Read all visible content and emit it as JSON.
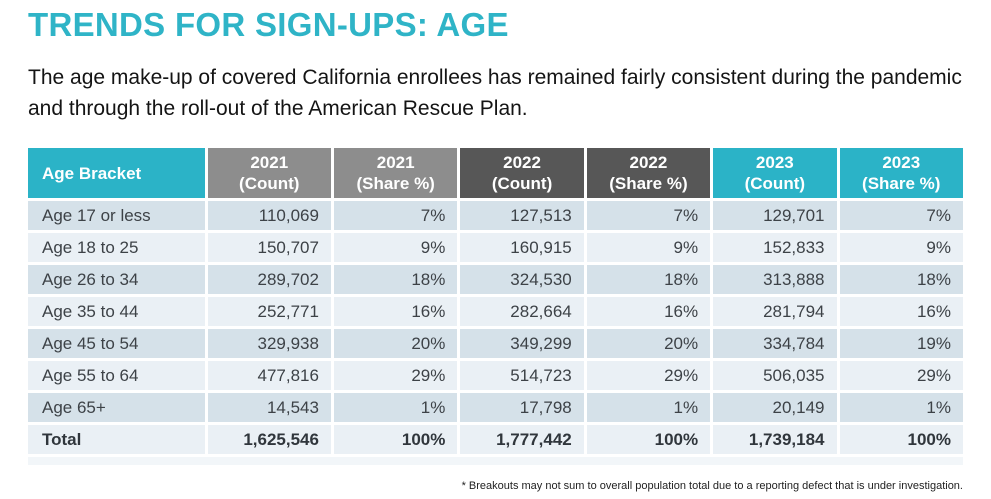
{
  "title": "TRENDS FOR SIGN-UPS: AGE",
  "subtitle": "The age make-up of covered California enrollees has remained fairly consistent during the pandemic and through the roll-out of the American Rescue Plan.",
  "footnote": "* Breakouts may not sum to overall population total due to a reporting defect that is under investigation.",
  "colors": {
    "accent_teal": "#2BB3C7",
    "header_gray_2021": "#8D8D8D",
    "header_gray_2022": "#575757",
    "row_stripe_dark": "#D5E1E9",
    "row_stripe_light": "#EAF0F5",
    "body_text": "#3D4247"
  },
  "table": {
    "columns": [
      {
        "line1": "Age Bracket",
        "line2": "",
        "theme": "teal"
      },
      {
        "line1": "2021",
        "line2": "(Count)",
        "theme": "gray-mid"
      },
      {
        "line1": "2021",
        "line2": "(Share %)",
        "theme": "gray-mid"
      },
      {
        "line1": "2022",
        "line2": "(Count)",
        "theme": "gray-dark"
      },
      {
        "line1": "2022",
        "line2": "(Share %)",
        "theme": "gray-dark"
      },
      {
        "line1": "2023",
        "line2": "(Count)",
        "theme": "teal"
      },
      {
        "line1": "2023",
        "line2": "(Share %)",
        "theme": "teal"
      }
    ],
    "rows": [
      {
        "bracket": "Age 17 or less",
        "values": [
          "110,069",
          "7%",
          "127,513",
          "7%",
          "129,701",
          "7%"
        ],
        "total": false
      },
      {
        "bracket": "Age 18 to 25",
        "values": [
          "150,707",
          "9%",
          "160,915",
          "9%",
          "152,833",
          "9%"
        ],
        "total": false
      },
      {
        "bracket": "Age 26 to 34",
        "values": [
          "289,702",
          "18%",
          "324,530",
          "18%",
          "313,888",
          "18%"
        ],
        "total": false
      },
      {
        "bracket": "Age 35 to 44",
        "values": [
          "252,771",
          "16%",
          "282,664",
          "16%",
          "281,794",
          "16%"
        ],
        "total": false
      },
      {
        "bracket": "Age 45 to 54",
        "values": [
          "329,938",
          "20%",
          "349,299",
          "20%",
          "334,784",
          "19%"
        ],
        "total": false
      },
      {
        "bracket": "Age 55 to 64",
        "values": [
          "477,816",
          "29%",
          "514,723",
          "29%",
          "506,035",
          "29%"
        ],
        "total": false
      },
      {
        "bracket": "Age 65+",
        "values": [
          "14,543",
          "1%",
          "17,798",
          "1%",
          "20,149",
          "1%"
        ],
        "total": false
      },
      {
        "bracket": "Total",
        "values": [
          "1,625,546",
          "100%",
          "1,777,442",
          "100%",
          "1,739,184",
          "100%"
        ],
        "total": true
      }
    ]
  },
  "chart_data": {
    "type": "table",
    "title": "TRENDS FOR SIGN-UPS: AGE",
    "columns": [
      "Age Bracket",
      "2021 (Count)",
      "2021 (Share %)",
      "2022 (Count)",
      "2022 (Share %)",
      "2023 (Count)",
      "2023 (Share %)"
    ],
    "rows": [
      [
        "Age 17 or less",
        110069,
        "7%",
        127513,
        "7%",
        129701,
        "7%"
      ],
      [
        "Age 18 to 25",
        150707,
        "9%",
        160915,
        "9%",
        152833,
        "9%"
      ],
      [
        "Age 26 to 34",
        289702,
        "18%",
        324530,
        "18%",
        313888,
        "18%"
      ],
      [
        "Age 35 to 44",
        252771,
        "16%",
        282664,
        "16%",
        281794,
        "16%"
      ],
      [
        "Age 45 to 54",
        329938,
        "20%",
        349299,
        "20%",
        334784,
        "19%"
      ],
      [
        "Age 55 to 64",
        477816,
        "29%",
        514723,
        "29%",
        506035,
        "29%"
      ],
      [
        "Age 65+",
        14543,
        "1%",
        17798,
        "1%",
        20149,
        "1%"
      ],
      [
        "Total",
        1625546,
        "100%",
        1777442,
        "100%",
        1739184,
        "100%"
      ]
    ]
  }
}
